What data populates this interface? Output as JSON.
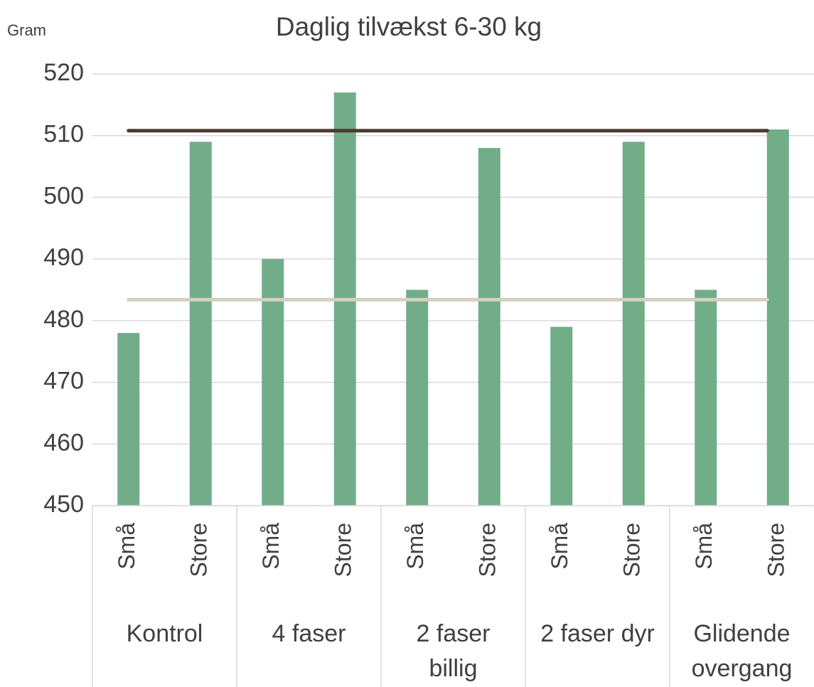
{
  "chart_data": {
    "type": "bar",
    "title": "Daglig tilvækst 6-30 kg",
    "y_label": "Gram",
    "categories": [
      "Små",
      "Store",
      "Små",
      "Store",
      "Små",
      "Store",
      "Små",
      "Store",
      "Små",
      "Store"
    ],
    "groups": [
      [
        "Kontrol"
      ],
      [
        "4 faser"
      ],
      [
        "2 faser",
        "billig"
      ],
      [
        "2 faser dyr"
      ],
      [
        "Glidende",
        "overgang"
      ]
    ],
    "values": [
      478,
      509,
      490,
      517,
      485,
      508,
      479,
      509,
      485,
      511
    ],
    "color": "#72ad8a",
    "reference_lines": [
      {
        "value": 510.8,
        "color": "#4b3b2f"
      },
      {
        "value": 483.4,
        "color": "#d3d0c1"
      }
    ],
    "ylim": [
      450,
      520
    ],
    "yticks": [
      450,
      460,
      470,
      480,
      490,
      500,
      510,
      520
    ],
    "grid": true
  }
}
